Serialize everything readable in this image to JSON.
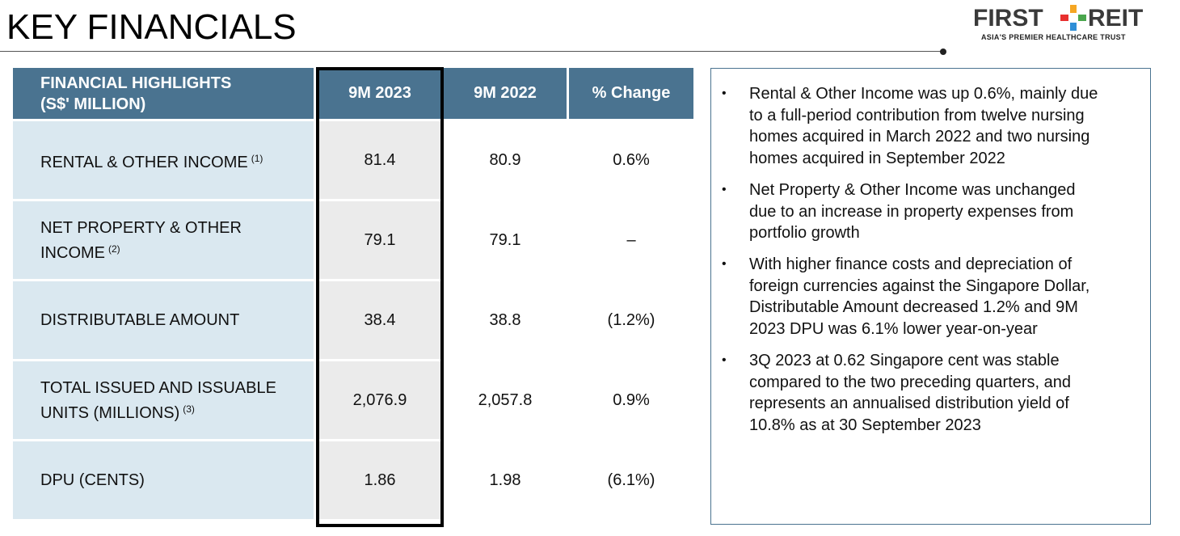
{
  "slide": {
    "title": "KEY FINANCIALS"
  },
  "logo": {
    "word_left": "FIRST",
    "word_right": "REIT",
    "tagline": "ASIA'S PREMIER HEALTHCARE TRUST",
    "colors": {
      "text": "#3a3a3a",
      "cross_top": "#f5a623",
      "cross_left": "#e8302f",
      "cross_right": "#4aa64d",
      "cross_bottom": "#2e8fd6"
    }
  },
  "table": {
    "header": {
      "label_line1": "FINANCIAL HIGHLIGHTS",
      "label_line2": "(S$' MILLION)",
      "col_2023": "9M 2023",
      "col_2022": "9M 2022",
      "col_change": "% Change"
    },
    "rows": [
      {
        "label_line1": "RENTAL & OTHER INCOME",
        "label_line2": "",
        "note": "(1)",
        "v2023": "81.4",
        "v2022": "80.9",
        "change": "0.6%"
      },
      {
        "label_line1": "NET PROPERTY & OTHER",
        "label_line2": "INCOME",
        "note": "(2)",
        "v2023": "79.1",
        "v2022": "79.1",
        "change": "–"
      },
      {
        "label_line1": "DISTRIBUTABLE AMOUNT",
        "label_line2": "",
        "note": "",
        "v2023": "38.4",
        "v2022": "38.8",
        "change": "(1.2%)"
      },
      {
        "label_line1": "TOTAL ISSUED AND ISSUABLE",
        "label_line2": "UNITS (MILLIONS)",
        "note": "(3)",
        "v2023": "2,076.9",
        "v2022": "2,057.8",
        "change": "0.9%"
      },
      {
        "label_line1": "DPU (CENTS)",
        "label_line2": "",
        "note": "",
        "v2023": "1.86",
        "v2022": "1.98",
        "change": "(6.1%)"
      }
    ],
    "colors": {
      "header_bg": "#4a7390",
      "label_bg": "#dae8f0",
      "highlight_bg": "#ebebeb"
    }
  },
  "notes": {
    "bullet": "•",
    "items": [
      [
        "Rental & Other Income was up 0.6%, mainly due",
        "to a full-period contribution from twelve nursing",
        "homes acquired in March 2022 and two nursing",
        "homes acquired in September 2022"
      ],
      [
        "Net Property & Other Income was unchanged",
        "due to an increase in property expenses from",
        "portfolio growth"
      ],
      [
        "With higher finance costs and depreciation of",
        "foreign currencies against the Singapore Dollar,",
        "Distributable Amount decreased 1.2% and 9M",
        "2023 DPU was 6.1% lower year-on-year"
      ],
      [
        "3Q 2023 at 0.62 Singapore cent was stable",
        "compared to the two preceding quarters, and",
        "represents an annualised distribution yield of",
        "10.8% as at 30 September 2023"
      ]
    ]
  }
}
